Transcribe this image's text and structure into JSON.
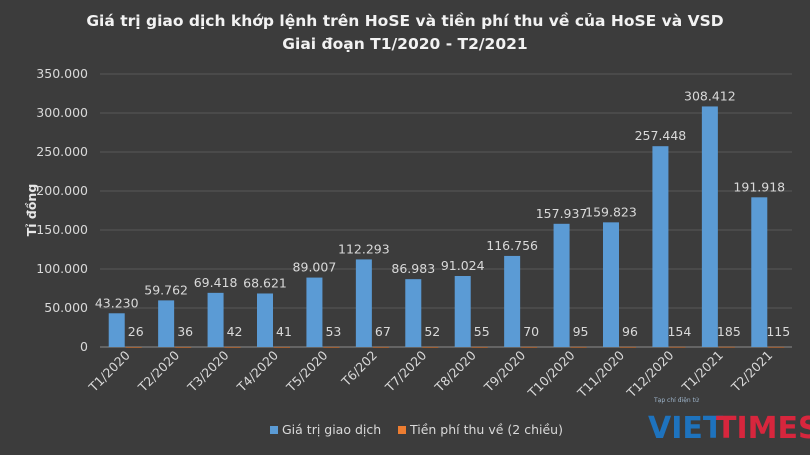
{
  "chart_data": {
    "type": "bar",
    "title": "Giá trị giao dịch khớp lệnh trên HoSE và tiền phí thu về của HoSE và VSD",
    "subtitle": "Giai đoạn T1/2020 - T2/2021",
    "ylabel": "Tỉ đồng",
    "ylim": [
      0,
      350000
    ],
    "yticks": [
      "0",
      "50.000",
      "100.000",
      "150.000",
      "200.000",
      "250.000",
      "300.000",
      "350.000"
    ],
    "categories": [
      "T1/2020",
      "T2/2020",
      "T3/2020",
      "T4/2020",
      "T5/2020",
      "T6/202",
      "T7/2020",
      "T8/2020",
      "T9/2020",
      "T10/2020",
      "T11/2020",
      "T12/2020",
      "T1/2021",
      "T2/2021"
    ],
    "series": [
      {
        "name": "Giá trị giao dịch",
        "color": "#5b9bd5",
        "values": [
          43230,
          59762,
          69418,
          68621,
          89007,
          112293,
          86983,
          91024,
          116756,
          157937,
          159823,
          257448,
          308412,
          191918
        ],
        "labels": [
          "43.230",
          "59.762",
          "69.418",
          "68.621",
          "89.007",
          "112.293",
          "86.983",
          "91.024",
          "116.756",
          "157.937",
          "159.823",
          "257.448",
          "308.412",
          "191.918"
        ]
      },
      {
        "name": "Tiền phí thu về (2 chiều)",
        "color": "#ed7d31",
        "values": [
          26,
          36,
          42,
          41,
          53,
          67,
          52,
          55,
          70,
          95,
          96,
          154,
          185,
          115
        ],
        "labels": [
          "26",
          "36",
          "42",
          "41",
          "53",
          "67",
          "52",
          "55",
          "70",
          "95",
          "96",
          "154",
          "185",
          "115"
        ]
      }
    ],
    "grid": "horizontal",
    "legend_position": "bottom"
  },
  "watermark": {
    "caption": "Tạp chí điện tử",
    "brand_a": "VIET",
    "brand_b": "TIMES",
    "color_a": "#1e73be",
    "color_b": "#d7263d"
  }
}
